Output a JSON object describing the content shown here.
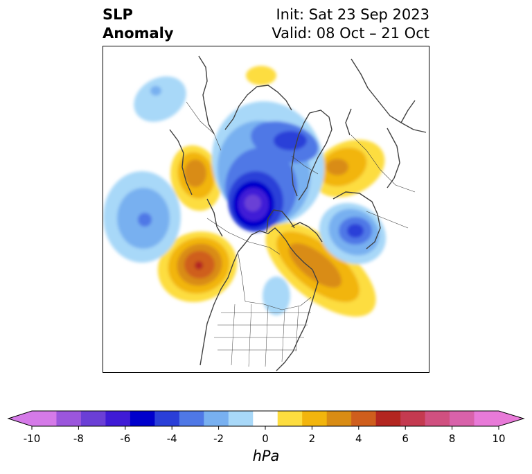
{
  "title": {
    "left_line1": "SLP",
    "left_line2": "Anomaly",
    "right_line1": "Init: Sat 23 Sep 2023",
    "right_line2": "Valid: 08 Oct – 21 Oct"
  },
  "map": {
    "projection": "polar stereographic (North America / Arctic)",
    "features": [
      "coastlines",
      "country borders",
      "US state borders",
      "Canadian province borders"
    ],
    "anomalies": [
      {
        "sign": "negative",
        "region": "Arctic Ocean near North Pole",
        "peak_hpa": -7
      },
      {
        "sign": "negative",
        "region": "Greenland / Canadian Arctic",
        "peak_hpa": -4
      },
      {
        "sign": "negative",
        "region": "North Pacific",
        "peak_hpa": -3
      },
      {
        "sign": "negative",
        "region": "Western Pacific",
        "peak_hpa": -2
      },
      {
        "sign": "negative",
        "region": "Siberia / Laptev Sea",
        "peak_hpa": -5
      },
      {
        "sign": "negative",
        "region": "Great Lakes",
        "peak_hpa": -2
      },
      {
        "sign": "positive",
        "region": "Northeast Pacific / Gulf of Alaska",
        "peak_hpa": 6
      },
      {
        "sign": "positive",
        "region": "East Asia / Northeast China",
        "peak_hpa": 4
      },
      {
        "sign": "positive",
        "region": "Northern Europe / Scandinavia",
        "peak_hpa": 3
      },
      {
        "sign": "positive",
        "region": "Ural / Western Siberia",
        "peak_hpa": 3
      },
      {
        "sign": "positive",
        "region": "North Atlantic / Labrador",
        "peak_hpa": 4
      }
    ]
  },
  "colorbar": {
    "unit": "hPa",
    "tick_labels": [
      "-10",
      "-8",
      "-6",
      "-4",
      "-2",
      "0",
      "2",
      "4",
      "6",
      "8",
      "10"
    ],
    "extend": "both",
    "colors": {
      "neg_ext": "#d57ae8",
      "n10_9": "#d57ae8",
      "n9_8": "#9b56dc",
      "n8_7": "#6b3fd6",
      "n7_6": "#3f1bd6",
      "n6_5": "#0000cc",
      "n5_4": "#2a3fd8",
      "n4_3": "#4f78e6",
      "n3_2": "#78b0f0",
      "n2_1": "#a8d8f8",
      "n1_1": "#ffffff",
      "p1_2": "#fddd3f",
      "p2_3": "#f2b50d",
      "p3_4": "#d98c14",
      "p4_5": "#cf5e1d",
      "p5_6": "#b32620",
      "p6_7": "#c43a50",
      "p7_8": "#d05080",
      "p8_9": "#d862aa",
      "p9_10": "#e87ad8",
      "pos_ext": "#e87ad8"
    }
  }
}
